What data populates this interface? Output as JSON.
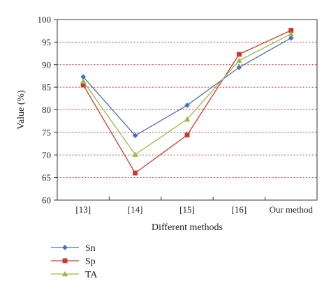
{
  "chart_data": {
    "type": "line",
    "categories": [
      "[13]",
      "[14]",
      "[15]",
      "[16]",
      "Our method"
    ],
    "xlabel": "Different methods",
    "ylabel": "Value (%)",
    "ylim": [
      60,
      100
    ],
    "yticks": [
      60,
      65,
      70,
      75,
      80,
      85,
      90,
      95,
      100
    ],
    "grid": "horizontal dotted",
    "legend_position": "bottom-left, below plot",
    "series": [
      {
        "name": "Sn",
        "color": "#4a6fba",
        "marker": "diamond",
        "values": [
          87.3,
          74.3,
          81.0,
          89.4,
          95.9
        ]
      },
      {
        "name": "Sp",
        "color": "#c83a32",
        "marker": "square",
        "values": [
          85.5,
          66.0,
          74.4,
          92.3,
          97.6
        ]
      },
      {
        "name": "TA",
        "color": "#9aba49",
        "marker": "triangle",
        "values": [
          86.3,
          70.1,
          77.9,
          90.9,
          96.8
        ]
      }
    ]
  },
  "colors": {
    "grid": "#c83a32",
    "axis": "#333333"
  }
}
